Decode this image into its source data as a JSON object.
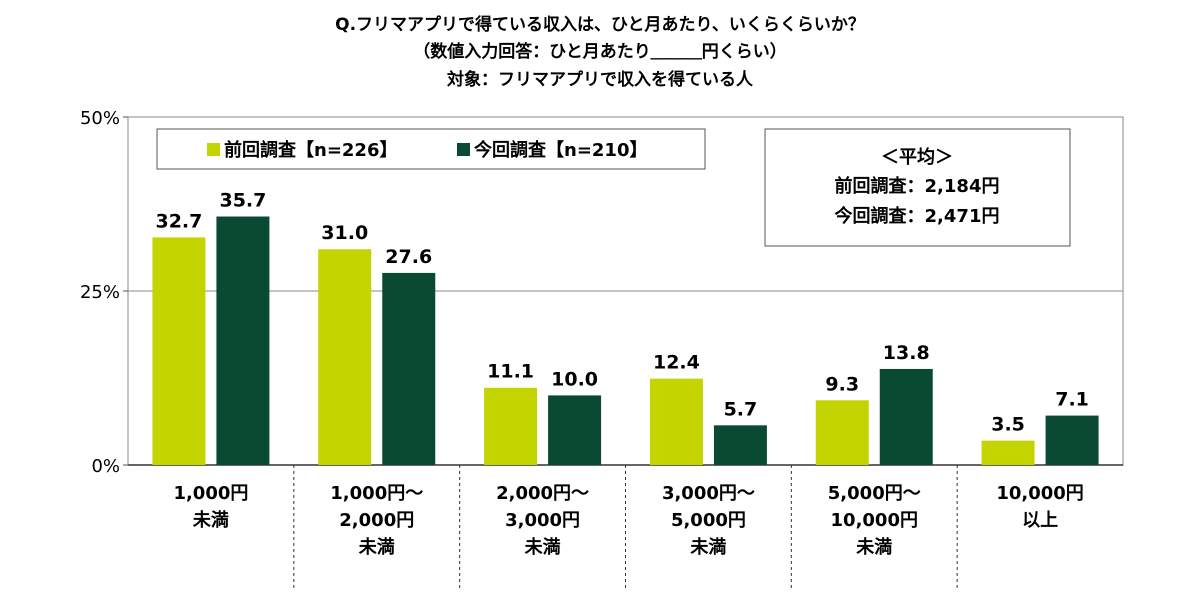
{
  "chart_data": {
    "type": "bar",
    "title": [
      "Q.フリマアプリで得ている収入は、ひと月あたり、いくらくらいか？",
      "（数値入力回答：ひと月あたり＿＿＿円くらい）",
      "対象：フリマアプリで収入を得ている人"
    ],
    "categories": [
      [
        "1,000円",
        "未満"
      ],
      [
        "1,000円～",
        "2,000円",
        "未満"
      ],
      [
        "2,000円～",
        "3,000円",
        "未満"
      ],
      [
        "3,000円～",
        "5,000円",
        "未満"
      ],
      [
        "5,000円～",
        "10,000円",
        "未満"
      ],
      [
        "10,000円",
        "以上"
      ]
    ],
    "series": [
      {
        "name": "前回調査【n=226】",
        "values": [
          32.7,
          31.0,
          11.1,
          12.4,
          9.3,
          3.5
        ],
        "color": "#c4d400"
      },
      {
        "name": "今回調査【n=210】",
        "values": [
          35.7,
          27.6,
          10.0,
          5.7,
          13.8,
          7.1
        ],
        "color": "#0a4a32"
      }
    ],
    "ylim": [
      0,
      50
    ],
    "yticks": [
      0,
      25,
      50
    ],
    "ytick_labels": [
      "0%",
      "25%",
      "50%"
    ],
    "grid": true,
    "legend_position": "top-left",
    "average_box": {
      "title": "＜平均＞",
      "lines": [
        "前回調査：2,184円",
        "今回調査：2,471円"
      ]
    }
  }
}
